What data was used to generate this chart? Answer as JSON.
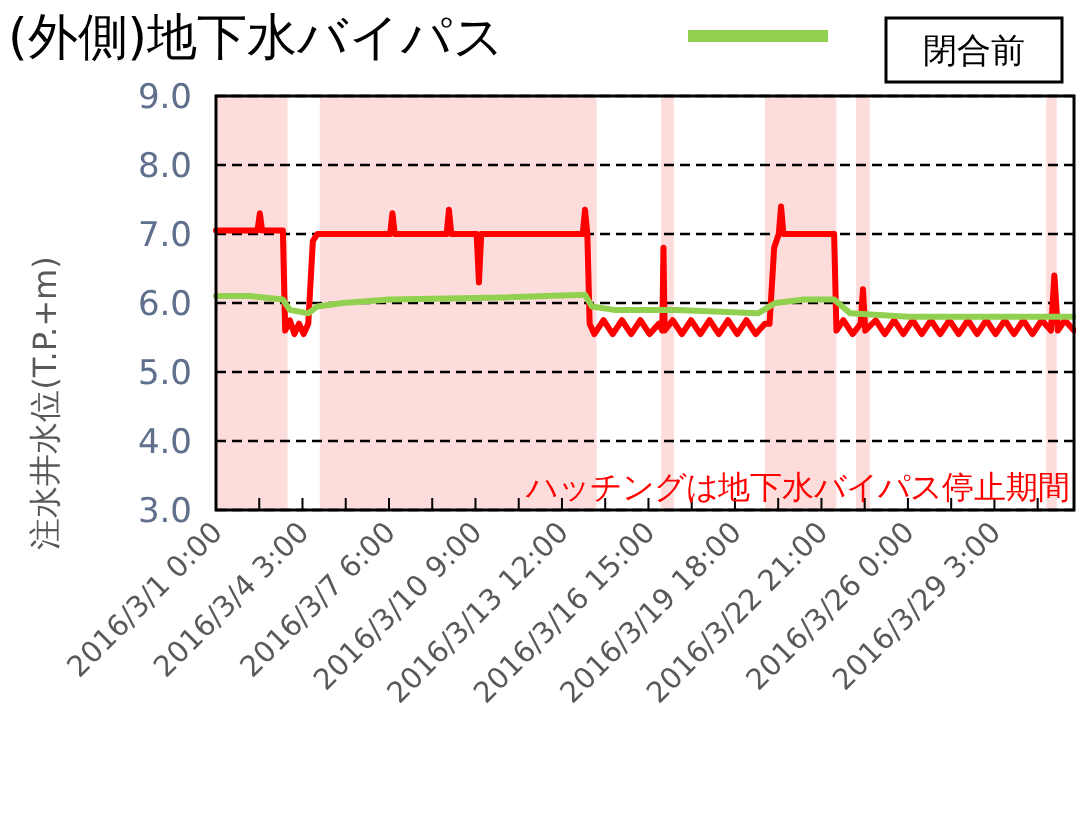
{
  "chart_data": {
    "type": "line",
    "ylabel": "注水井水位(T.P.+m)",
    "annotations": [
      "閉合前",
      "ハッチングは地下水バイパス停止期間"
    ],
    "legend": "top left",
    "grid": "y",
    "marker": "none",
    "line_style": "solid",
    "xlim": [
      "2016-03-01T00:00",
      "2016-04-01T00:00"
    ],
    "xticks": [
      {
        "value": "2016-03-01T00:00",
        "label": "2016/3/1 0:00"
      },
      {
        "value": "2016-03-02T13:30",
        "label": null
      },
      {
        "value": "2016-03-04T03:00",
        "label": "2016/3/4 3:00"
      },
      {
        "value": "2016-03-05T16:30",
        "label": null
      },
      {
        "value": "2016-03-07T06:00",
        "label": "2016/3/7 6:00"
      },
      {
        "value": "2016-03-08T19:30",
        "label": null
      },
      {
        "value": "2016-03-10T09:00",
        "label": "2016/3/10 9:00"
      },
      {
        "value": "2016-03-11T22:30",
        "label": null
      },
      {
        "value": "2016-03-13T12:00",
        "label": "2016/3/13 12:00"
      },
      {
        "value": "2016-03-15T01:30",
        "label": null
      },
      {
        "value": "2016-03-16T15:00",
        "label": "2016/3/16 15:00"
      },
      {
        "value": "2016-03-18T04:30",
        "label": null
      },
      {
        "value": "2016-03-19T18:00",
        "label": "2016/3/19 18:00"
      },
      {
        "value": "2016-03-21T07:30",
        "label": null
      },
      {
        "value": "2016-03-22T21:00",
        "label": "2016/3/22 21:00"
      },
      {
        "value": "2016-03-24T10:30",
        "label": null
      },
      {
        "value": "2016-03-26T00:00",
        "label": "2016/3/26 0:00"
      },
      {
        "value": "2016-03-27T13:30",
        "label": null
      },
      {
        "value": "2016-03-29T03:00",
        "label": "2016/3/29 3:00"
      },
      {
        "value": "2016-03-30T16:30",
        "label": null
      }
    ],
    "ylim": [
      3,
      9
    ],
    "yticks": [
      {
        "value": 3,
        "label": "3.0"
      },
      {
        "value": 4,
        "label": "4.0"
      },
      {
        "value": 5,
        "label": "5.0"
      },
      {
        "value": 6,
        "label": "6.0"
      },
      {
        "value": 7,
        "label": "7.0"
      },
      {
        "value": 8,
        "label": "8.0"
      },
      {
        "value": 9,
        "label": "9.0"
      }
    ],
    "bands": [
      {
        "axis": "x",
        "from": "2016-03-01T00:00",
        "to": "2016-03-03T14:00",
        "color": "#fddcdc"
      },
      {
        "axis": "x",
        "from": "2016-03-04T18:00",
        "to": "2016-03-14T18:00",
        "color": "#fddcdc"
      },
      {
        "axis": "x",
        "from": "2016-03-17T02:00",
        "to": "2016-03-17T13:00",
        "color": "#fddcdc"
      },
      {
        "axis": "x",
        "from": "2016-03-20T20:00",
        "to": "2016-03-23T10:00",
        "color": "#fddcdc"
      },
      {
        "axis": "x",
        "from": "2016-03-24T03:00",
        "to": "2016-03-24T15:00",
        "color": "#fddcdc"
      },
      {
        "axis": "x",
        "from": "2016-03-31T00:00",
        "to": "2016-03-31T09:00",
        "color": "#fddcdc"
      }
    ],
    "series": [
      {
        "color": "#ff0000",
        "x": [
          "2016-03-01T00:00",
          "2016-03-02T12:00",
          "2016-03-02T14:00",
          "2016-03-02T16:00",
          "2016-03-03T10:00",
          "2016-03-03T12:00",
          "2016-03-03T16:00",
          "2016-03-03T20:00",
          "2016-03-04T00:00",
          "2016-03-04T04:00",
          "2016-03-04T08:00",
          "2016-03-04T12:00",
          "2016-03-04T16:00",
          "2016-03-07T07:00",
          "2016-03-07T09:00",
          "2016-03-07T11:00",
          "2016-03-09T08:00",
          "2016-03-09T10:00",
          "2016-03-09T12:00",
          "2016-03-10T10:00",
          "2016-03-10T12:00",
          "2016-03-10T14:00",
          "2016-03-14T06:00",
          "2016-03-14T08:00",
          "2016-03-14T10:00",
          "2016-03-14T12:00",
          "2016-03-14T16:00",
          "2016-03-15T00:00",
          "2016-03-15T08:00",
          "2016-03-15T16:00",
          "2016-03-16T00:00",
          "2016-03-16T08:00",
          "2016-03-16T16:00",
          "2016-03-17T00:00",
          "2016-03-17T03:00",
          "2016-03-17T04:00",
          "2016-03-17T05:00",
          "2016-03-17T12:00",
          "2016-03-17T20:00",
          "2016-03-18T04:00",
          "2016-03-18T12:00",
          "2016-03-18T20:00",
          "2016-03-19T04:00",
          "2016-03-19T12:00",
          "2016-03-19T20:00",
          "2016-03-20T04:00",
          "2016-03-20T12:00",
          "2016-03-20T20:00",
          "2016-03-21T00:00",
          "2016-03-21T04:00",
          "2016-03-21T08:00",
          "2016-03-21T10:00",
          "2016-03-21T12:00",
          "2016-03-23T08:00",
          "2016-03-23T10:00",
          "2016-03-23T16:00",
          "2016-03-24T00:00",
          "2016-03-24T07:00",
          "2016-03-24T09:00",
          "2016-03-24T11:00",
          "2016-03-24T20:00",
          "2016-03-25T04:00",
          "2016-03-25T12:00",
          "2016-03-25T20:00",
          "2016-03-26T04:00",
          "2016-03-26T12:00",
          "2016-03-26T20:00",
          "2016-03-27T04:00",
          "2016-03-27T12:00",
          "2016-03-27T20:00",
          "2016-03-28T04:00",
          "2016-03-28T12:00",
          "2016-03-28T20:00",
          "2016-03-29T04:00",
          "2016-03-29T12:00",
          "2016-03-29T20:00",
          "2016-03-30T04:00",
          "2016-03-30T12:00",
          "2016-03-30T20:00",
          "2016-03-31T04:00",
          "2016-03-31T07:00",
          "2016-03-31T10:00",
          "2016-03-31T16:00",
          "2016-04-01T00:00"
        ],
        "values": [
          7.05,
          7.05,
          7.3,
          7.05,
          7.05,
          5.6,
          5.75,
          5.55,
          5.7,
          5.55,
          5.7,
          6.9,
          7.0,
          7.0,
          7.3,
          7.0,
          7.0,
          7.35,
          7.0,
          7.0,
          6.3,
          7.0,
          7.0,
          7.35,
          7.0,
          5.7,
          5.55,
          5.75,
          5.55,
          5.75,
          5.55,
          5.75,
          5.55,
          5.7,
          5.6,
          6.8,
          5.6,
          5.75,
          5.55,
          5.75,
          5.55,
          5.75,
          5.55,
          5.75,
          5.55,
          5.75,
          5.55,
          5.7,
          5.7,
          6.8,
          7.0,
          7.4,
          7.0,
          7.0,
          5.6,
          5.75,
          5.55,
          5.7,
          6.2,
          5.6,
          5.75,
          5.55,
          5.75,
          5.55,
          5.75,
          5.55,
          5.75,
          5.55,
          5.75,
          5.55,
          5.75,
          5.55,
          5.75,
          5.55,
          5.75,
          5.55,
          5.75,
          5.55,
          5.75,
          5.6,
          6.4,
          5.6,
          5.75,
          5.6
        ]
      },
      {
        "name": "(外側)地下水バイパス",
        "color": "#92d050",
        "x": [
          "2016-03-01T00:00",
          "2016-03-02T06:00",
          "2016-03-03T10:00",
          "2016-03-03T16:00",
          "2016-03-04T08:00",
          "2016-03-04T16:00",
          "2016-03-05T14:00",
          "2016-03-07T06:00",
          "2016-03-11T10:00",
          "2016-03-14T08:00",
          "2016-03-14T14:00",
          "2016-03-15T09:00",
          "2016-03-17T16:00",
          "2016-03-20T14:00",
          "2016-03-21T05:00",
          "2016-03-22T06:00",
          "2016-03-23T08:00",
          "2016-03-23T22:00",
          "2016-03-26T00:00",
          "2016-03-30T04:00",
          "2016-04-01T00:00"
        ],
        "values": [
          6.1,
          6.1,
          6.05,
          5.9,
          5.85,
          5.95,
          6.0,
          6.05,
          6.08,
          6.12,
          5.95,
          5.9,
          5.9,
          5.85,
          6.0,
          6.05,
          6.05,
          5.85,
          5.8,
          5.8,
          5.8
        ]
      }
    ]
  }
}
